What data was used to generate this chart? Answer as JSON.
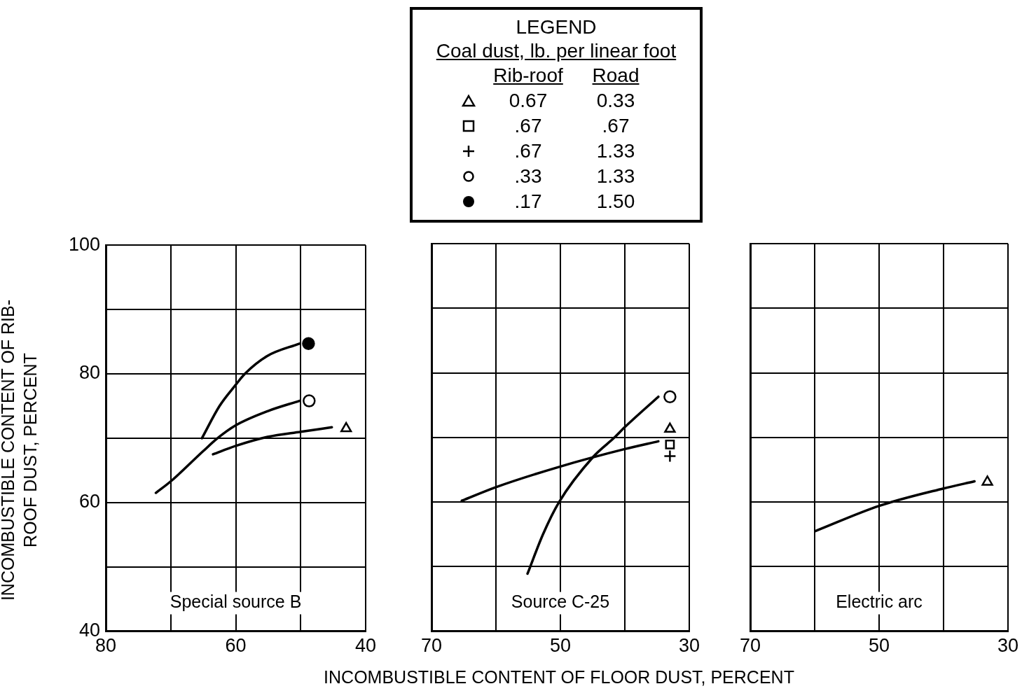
{
  "chart_data": [
    {
      "type": "other",
      "title": "LEGEND",
      "subtitle": "Coal dust, lb. per linear foot",
      "annotations": [
        "Rib-roof",
        "Road",
        "0.67",
        "0.33",
        ".67",
        ".67",
        ".67",
        "1.33",
        ".33",
        "1.33",
        ".17",
        "1.50"
      ]
    },
    {
      "type": "line",
      "xlim": [
        80,
        40
      ],
      "xticks": [
        80,
        {
          "value": 70,
          "label": null
        },
        60,
        {
          "value": 50,
          "label": null
        },
        40
      ],
      "ylim": [
        40,
        100
      ],
      "yticks": [
        40,
        {
          "value": 50,
          "label": null
        },
        60,
        {
          "value": 70,
          "label": null
        },
        80,
        {
          "value": 90,
          "label": null
        },
        100
      ],
      "ylabel": "INCOMBUSTIBLE CONTENT OF RIB-ROOF DUST, PERCENT",
      "grid": true,
      "annotations": [
        "Special source B"
      ],
      "series": [
        {
          "type": "line",
          "color": "#000000",
          "marker": "none",
          "x": [
            65.2,
            62.5,
            60,
            58.6,
            55.1,
            50.2
          ],
          "values": [
            70,
            75,
            78.3,
            80,
            82.8,
            84.7
          ]
        },
        {
          "type": "scatter",
          "color": "#000000",
          "marker": "circle",
          "colors": [
            "#000000"
          ],
          "x": [
            48.8
          ],
          "values": [
            84.7
          ]
        },
        {
          "type": "line",
          "color": "#000000",
          "marker": "none",
          "x": [
            72.3,
            70,
            65,
            62.8,
            60,
            55.1,
            50.2
          ],
          "values": [
            61.5,
            63.3,
            68,
            70,
            72,
            74.2,
            75.8
          ]
        },
        {
          "type": "scatter",
          "color": "#000000",
          "marker": "circle",
          "x": [
            48.7
          ],
          "values": [
            75.8
          ]
        },
        {
          "type": "line",
          "color": "#000000",
          "marker": "none",
          "x": [
            63.5,
            60,
            55.1,
            50,
            45.2
          ],
          "values": [
            67.5,
            68.8,
            70.2,
            71,
            71.7
          ]
        },
        {
          "type": "scatter",
          "color": "#000000",
          "marker": "triangle",
          "x": [
            43
          ],
          "values": [
            71.5
          ]
        }
      ]
    },
    {
      "type": "line",
      "xlim": [
        70,
        30
      ],
      "xticks": [
        70,
        {
          "value": 60,
          "label": null
        },
        50,
        {
          "value": 40,
          "label": null
        },
        30
      ],
      "ylim": [
        40,
        100
      ],
      "yticks": [
        40,
        {
          "value": 50,
          "label": null
        },
        60,
        {
          "value": 70,
          "label": null
        },
        80,
        {
          "value": 90,
          "label": null
        },
        100
      ],
      "tick_labels": "x",
      "xlabel": "INCOMBUSTIBLE CONTENT OF FLOOR DUST, PERCENT",
      "grid": true,
      "annotations": [
        "Source C-25"
      ],
      "series": [
        {
          "type": "line",
          "color": "#000000",
          "marker": "none",
          "x": [
            65.3,
            60,
            50,
            40,
            34.8
          ],
          "values": [
            60.2,
            62.3,
            65.5,
            68.2,
            69.4
          ]
        },
        {
          "type": "line",
          "color": "#000000",
          "marker": "none",
          "x": [
            55.1,
            52.7,
            50.2,
            44.9,
            41.6,
            40,
            34.8
          ],
          "values": [
            48.9,
            55,
            60,
            67,
            70,
            71.6,
            76.3
          ]
        },
        {
          "type": "scatter",
          "color": "#000000",
          "marker": "circle",
          "x": [
            33
          ],
          "values": [
            76.3
          ]
        },
        {
          "type": "scatter",
          "color": "#000000",
          "marker": "triangle",
          "x": [
            33
          ],
          "values": [
            71.3
          ]
        },
        {
          "type": "scatter",
          "color": "#000000",
          "marker": "square",
          "x": [
            33
          ],
          "values": [
            68.9
          ]
        },
        {
          "type": "scatter",
          "color": "#000000",
          "marker": "cross",
          "x": [
            33
          ],
          "values": [
            67.1
          ]
        }
      ]
    },
    {
      "type": "line",
      "xlim": [
        70,
        30
      ],
      "xticks": [
        70,
        {
          "value": 60,
          "label": null
        },
        50,
        {
          "value": 40,
          "label": null
        },
        30
      ],
      "ylim": [
        40,
        100
      ],
      "yticks": [
        40,
        {
          "value": 50,
          "label": null
        },
        60,
        {
          "value": 70,
          "label": null
        },
        80,
        {
          "value": 90,
          "label": null
        },
        100
      ],
      "tick_labels": "x",
      "grid": true,
      "annotations": [
        "Electric arc"
      ],
      "series": [
        {
          "type": "line",
          "color": "#000000",
          "marker": "none",
          "x": [
            59.9,
            50,
            40,
            35.2
          ],
          "values": [
            55.5,
            59.4,
            62.1,
            63.2
          ]
        },
        {
          "type": "scatter",
          "color": "#000000",
          "marker": "triangle",
          "x": [
            33.2
          ],
          "values": [
            63.1
          ]
        }
      ]
    }
  ]
}
